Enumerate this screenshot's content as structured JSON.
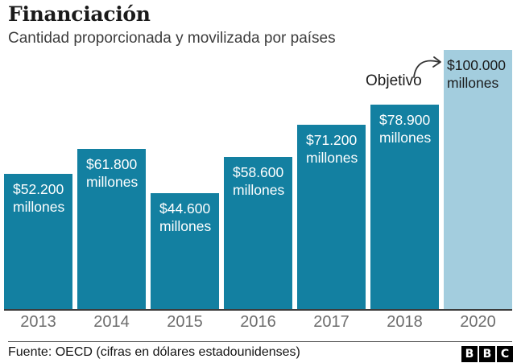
{
  "header": {
    "title": "Financiación",
    "subtitle": "Cantidad proporcionada y movilizada por países"
  },
  "chart_data": {
    "type": "bar",
    "title": "Financiación",
    "subtitle": "Cantidad proporcionada y movilizada por países",
    "unit": "millones de dólares estadounidenses",
    "categories": [
      "2013",
      "2014",
      "2015",
      "2016",
      "2017",
      "2018",
      "2020"
    ],
    "values": [
      52200,
      61800,
      44600,
      58600,
      71200,
      78900,
      100000
    ],
    "bar_labels": [
      [
        "$52.200",
        "millones"
      ],
      [
        "$61.800",
        "millones"
      ],
      [
        "$44.600",
        "millones"
      ],
      [
        "$58.600",
        "millones"
      ],
      [
        "$71.200",
        "millones"
      ],
      [
        "$78.900",
        "millones"
      ],
      [
        "$100.000",
        "millones"
      ]
    ],
    "target_index": 6,
    "annotation": "Objetivo",
    "ylim": [
      0,
      100000
    ],
    "grid": false,
    "legend": "none",
    "colors": {
      "bar": "#1380A1",
      "target_bar": "#A3CDDE",
      "label_on_bar": "#ffffff",
      "label_on_target": "#1a1a1a",
      "axis_label": "#6d6d6d"
    }
  },
  "footer": {
    "source": "Fuente: OECD (cifras en dólares estadounidenses)",
    "logo_letters": [
      "B",
      "B",
      "C"
    ]
  }
}
